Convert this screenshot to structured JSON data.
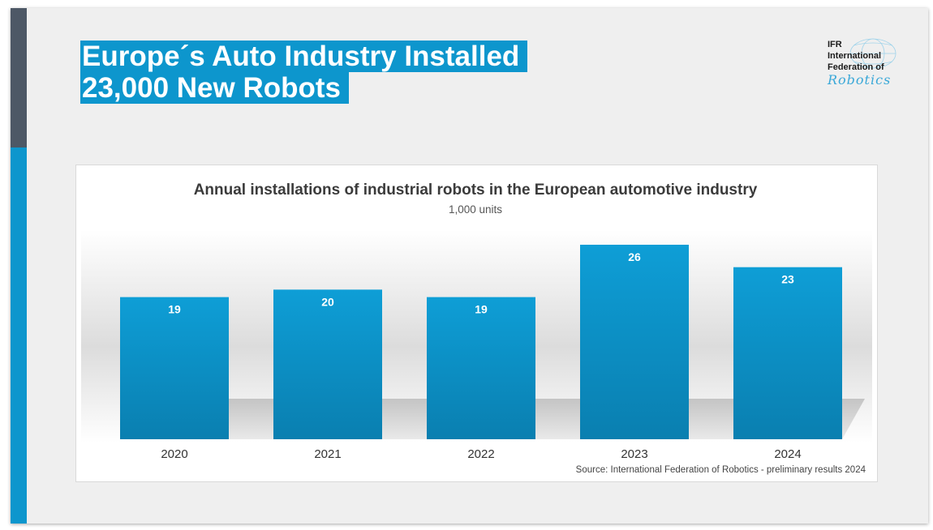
{
  "slide": {
    "title_line1": "Europe´s Auto Industry Installed",
    "title_line2": "23,000 New Robots"
  },
  "logo": {
    "line1": "IFR",
    "line2": "International",
    "line3": "Federation of",
    "script": "Robotics"
  },
  "colors": {
    "accent_blue": "#0d96cd",
    "sidebar_dark": "#4d5866",
    "bar_top": "#0e9ed6",
    "bar_bottom": "#0a7fb0"
  },
  "chart_data": {
    "type": "bar",
    "title": "Annual installations of industrial robots in the European automotive industry",
    "subtitle": "1,000 units",
    "categories": [
      "2020",
      "2021",
      "2022",
      "2023",
      "2024"
    ],
    "values": [
      19,
      20,
      19,
      26,
      23
    ],
    "ylim": [
      0,
      26
    ],
    "grid": false,
    "legend": "none",
    "source": "Source: International Federation of Robotics - preliminary results 2024"
  }
}
